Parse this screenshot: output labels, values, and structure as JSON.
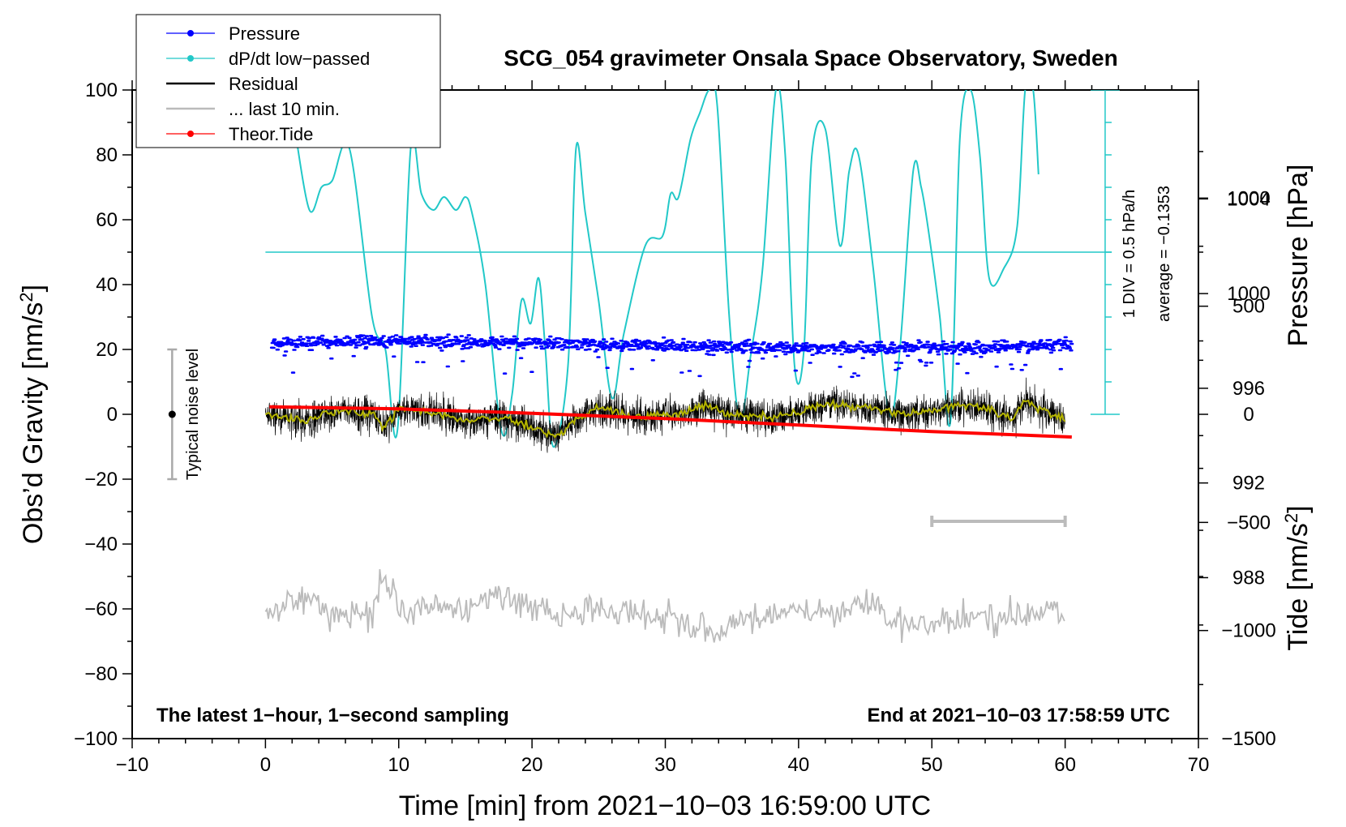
{
  "chart_data": {
    "type": "line",
    "title": "SCG_054 gravimeter Onsala Space Observatory, Sweden",
    "xlabel": "Time [min] from 2021−10−03 16:59:00 UTC",
    "ylabel_left_pre": "Obs’d Gravity [nm/s",
    "ylabel_left_sup": "2",
    "ylabel_left_post": "]",
    "ylabel_pressure": "Pressure [hPa]",
    "ylabel_tide_pre": "Tide [nm/s",
    "ylabel_tide_sup": "2",
    "ylabel_tide_post": "]",
    "xlim": [
      -10,
      70
    ],
    "ylim": [
      -100,
      100
    ],
    "pressure_lim": [
      981.2,
      1008.6
    ],
    "tide_lim": [
      -1500,
      1500
    ],
    "x_ticks": [
      -10,
      0,
      10,
      20,
      30,
      40,
      50,
      60,
      70
    ],
    "x_tick_labels": [
      "−10",
      "0",
      "10",
      "20",
      "30",
      "40",
      "50",
      "60",
      "70"
    ],
    "y_ticks": [
      -100,
      -80,
      -60,
      -40,
      -20,
      0,
      20,
      40,
      60,
      80,
      100
    ],
    "y_tick_labels": [
      "−100",
      "−80",
      "−60",
      "−40",
      "−20",
      "0",
      "20",
      "40",
      "60",
      "80",
      "100"
    ],
    "pressure_ticks": [
      988,
      992,
      996,
      1000,
      1004
    ],
    "pressure_tick_labels": [
      "988",
      "992",
      "996",
      "1000",
      "1004"
    ],
    "tide_ticks": [
      -1500,
      -1000,
      -500,
      0,
      500,
      1000
    ],
    "tide_tick_labels": [
      "−1500",
      "−1000",
      "−500",
      "0",
      "500",
      "1000"
    ],
    "legend": [
      {
        "label": "Pressure",
        "color": "#0000ff",
        "marker": true
      },
      {
        "label": "dP/dt low−passed",
        "color": "#22c8c8",
        "marker": true
      },
      {
        "label": "Residual",
        "color": "#000000",
        "marker": false
      },
      {
        "label": "... last 10 min.",
        "color": "#bbbbbb",
        "marker": false
      },
      {
        "label": "Theor.Tide",
        "color": "#ff0000",
        "marker": true
      }
    ],
    "annotations": {
      "bottom_left": "The latest 1−hour, 1−second sampling",
      "bottom_right": "End at 2021−10−03 17:58:59 UTC",
      "dpdt_scale": "1 DIV = 0.5 hPa/h",
      "dpdt_average": "average = −0.1353",
      "noise": "Typical noise level"
    },
    "noise_bar": {
      "x": -7,
      "center": 0,
      "half_range": 20
    },
    "ten_min_bar": {
      "x_start": 50,
      "x_end": 60,
      "y": -33
    },
    "dpdt_reference_y": 50,
    "dpdt_scale_axis": {
      "x": 63,
      "y_min": 0,
      "y_max": 100,
      "divisions": 10
    },
    "series": [
      {
        "name": "Pressure (hPa)",
        "color": "#0000ff",
        "x": [
          0.5,
          10,
          20,
          30,
          40,
          50,
          60.5
        ],
        "values": [
          997.9,
          998.0,
          997.9,
          997.8,
          997.7,
          997.7,
          997.8
        ]
      },
      {
        "name": "dP/dt low-passed (left-axis units)",
        "color": "#22c8c8",
        "x": [
          2.2,
          3.3,
          4.2,
          5.0,
          6.3,
          8.0,
          9.0,
          9.9,
          10.9,
          11.7,
          12.6,
          13.4,
          14.3,
          15.0,
          15.5,
          16.5,
          17.7,
          18.5,
          19.2,
          19.9,
          20.5,
          21.0,
          21.6,
          22.7,
          23.3,
          24.0,
          25.0,
          26.0,
          26.9,
          28.5,
          29.8,
          30.4,
          31.0,
          31.9,
          32.6,
          33.3,
          33.9,
          34.8,
          35.6,
          36.4,
          37.3,
          38.3,
          39.0,
          39.7,
          40.4,
          41.0,
          42.0,
          43.1,
          43.8,
          44.5,
          45.6,
          46.8,
          47.6,
          48.6,
          49.2,
          49.8,
          50.6,
          51.4,
          52.1,
          52.9,
          53.6,
          54.3,
          55.4,
          56.4,
          57.0,
          57.6,
          58.0
        ],
        "values": [
          88,
          63,
          70,
          72,
          82,
          30,
          20,
          -5,
          82,
          68,
          63,
          67,
          63,
          67,
          62,
          40,
          -5,
          6,
          35,
          28,
          42,
          20,
          -10,
          15,
          82,
          62,
          35,
          5,
          25,
          52,
          55,
          68,
          67,
          85,
          93,
          100,
          95,
          30,
          -2,
          18,
          45,
          100,
          80,
          15,
          20,
          80,
          88,
          52,
          75,
          80,
          45,
          0,
          20,
          75,
          70,
          55,
          30,
          -2,
          85,
          100,
          80,
          42,
          45,
          58,
          100,
          100,
          74
        ]
      },
      {
        "name": "Residual (running mean)",
        "color": "#b4b400",
        "x": [
          0,
          3,
          5,
          8,
          9,
          10,
          13,
          15,
          18,
          20,
          22,
          23,
          25,
          28,
          31,
          33,
          35,
          38,
          40,
          42,
          45,
          48,
          50,
          52,
          54,
          56,
          57,
          60
        ],
        "values": [
          0,
          -2,
          1,
          0,
          -4,
          2,
          0,
          -2,
          -1,
          -4,
          -7,
          -2,
          2,
          -1,
          0,
          3,
          0,
          -1,
          1,
          3,
          2,
          0,
          1,
          3,
          2,
          -1,
          4,
          -2
        ]
      },
      {
        "name": "Residual last 10 min (offset)",
        "color": "#bbbbbb",
        "x": [
          0,
          2.5,
          5,
          8,
          8.8,
          10,
          12,
          15,
          17,
          20,
          22,
          25,
          28,
          31,
          34,
          36,
          40,
          42,
          45,
          48,
          50,
          53,
          56,
          58,
          60
        ],
        "values": [
          -62,
          -56,
          -62,
          -60,
          -48,
          -62,
          -58,
          -60,
          -56,
          -60,
          -63,
          -60,
          -62,
          -64,
          -68,
          -63,
          -60,
          -61,
          -58,
          -64,
          -66,
          -62,
          -63,
          -60,
          -62
        ]
      },
      {
        "name": "Theor.Tide (nm/s2)",
        "color": "#ff0000",
        "x": [
          0.3,
          10,
          20,
          30,
          40,
          50,
          60.5
        ],
        "values": [
          35,
          25,
          5,
          -20,
          -50,
          -80,
          -105
        ]
      }
    ]
  }
}
